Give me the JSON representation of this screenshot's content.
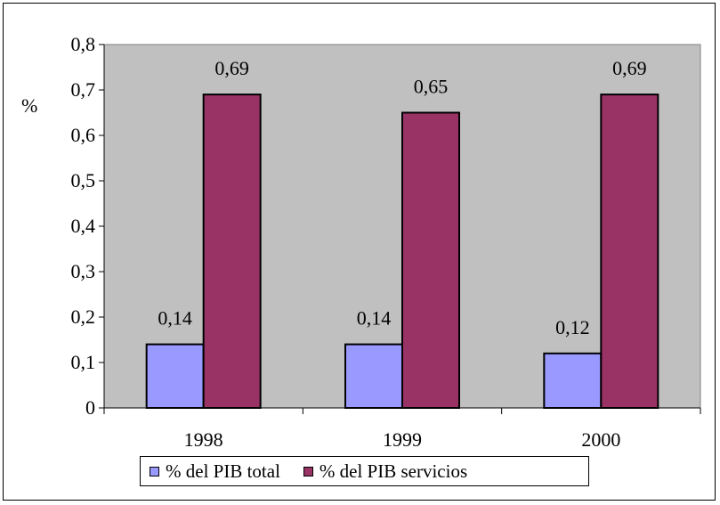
{
  "chart_data": {
    "type": "bar",
    "title": "",
    "xlabel": "",
    "ylabel": "%",
    "categories": [
      "1998",
      "1999",
      "2000"
    ],
    "series": [
      {
        "name": "% del PIB total",
        "values": [
          0.14,
          0.14,
          0.12
        ],
        "labels": [
          "0,14",
          "0,14",
          "0,12"
        ],
        "color": "#9999ff"
      },
      {
        "name": "% del PIB servicios",
        "values": [
          0.69,
          0.65,
          0.69
        ],
        "labels": [
          "0,69",
          "0,65",
          "0,69"
        ],
        "color": "#993366"
      }
    ],
    "ylim": [
      0,
      0.8
    ],
    "yticks": [
      {
        "value": 0,
        "label": "0"
      },
      {
        "value": 0.1,
        "label": "0,1"
      },
      {
        "value": 0.2,
        "label": "0,2"
      },
      {
        "value": 0.3,
        "label": "0,3"
      },
      {
        "value": 0.4,
        "label": "0,4"
      },
      {
        "value": 0.5,
        "label": "0,5"
      },
      {
        "value": 0.6,
        "label": "0,6"
      },
      {
        "value": 0.7,
        "label": "0,7"
      },
      {
        "value": 0.8,
        "label": "0,8"
      }
    ],
    "plot_background": "#c0c0c0",
    "grid": false,
    "legend_position": "bottom"
  }
}
